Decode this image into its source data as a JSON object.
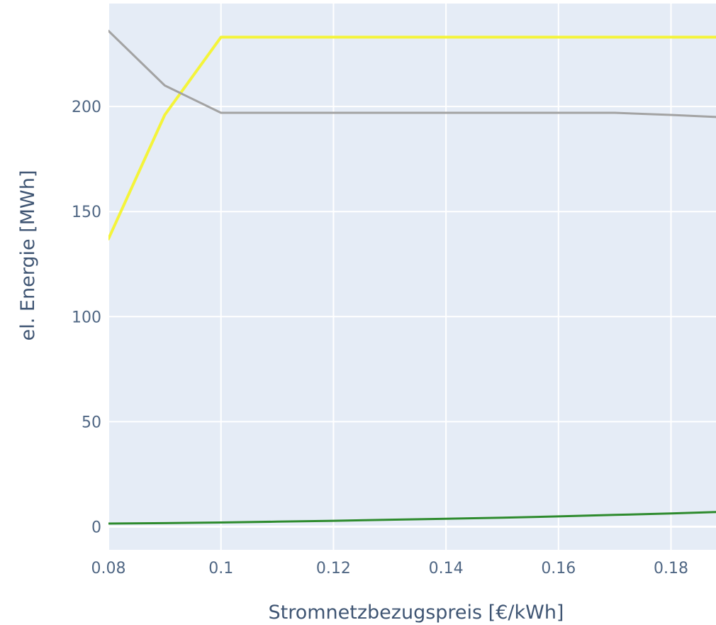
{
  "chart_data": {
    "type": "line",
    "title": "",
    "xlabel": "Stromnetzbezugspreis [€/kWh]",
    "ylabel": "el. Energie [MWh]",
    "xlim": [
      0.08,
      0.188
    ],
    "ylim": [
      -11,
      249
    ],
    "x_ticks": [
      {
        "value": 0.08,
        "label": "0.08"
      },
      {
        "value": 0.1,
        "label": "0.1"
      },
      {
        "value": 0.12,
        "label": "0.12"
      },
      {
        "value": 0.14,
        "label": "0.14"
      },
      {
        "value": 0.16,
        "label": "0.16"
      },
      {
        "value": 0.18,
        "label": "0.18"
      }
    ],
    "y_ticks": [
      {
        "value": 0,
        "label": "0"
      },
      {
        "value": 50,
        "label": "50"
      },
      {
        "value": 100,
        "label": "100"
      },
      {
        "value": 150,
        "label": "150"
      },
      {
        "value": 200,
        "label": "200"
      }
    ],
    "grid": true,
    "colors": {
      "plot_background": "#e5ecf6",
      "grid": "#ffffff",
      "tick_text": "#506784",
      "axis_title": "#3f5573"
    },
    "series": [
      {
        "color": "#f4f43a",
        "x": [
          0.08,
          0.09,
          0.1,
          0.11,
          0.12,
          0.13,
          0.14,
          0.15,
          0.16,
          0.17,
          0.18,
          0.188
        ],
        "y": [
          137,
          196,
          233,
          233,
          233,
          233,
          233,
          233,
          233,
          233,
          233,
          233
        ]
      },
      {
        "color": "#a3a3a3",
        "x": [
          0.08,
          0.09,
          0.1,
          0.11,
          0.12,
          0.13,
          0.14,
          0.15,
          0.16,
          0.17,
          0.18,
          0.188
        ],
        "y": [
          236,
          210,
          197,
          197,
          197,
          197,
          197,
          197,
          197,
          197,
          196,
          195
        ]
      },
      {
        "color": "#2e8b2e",
        "x": [
          0.08,
          0.09,
          0.1,
          0.11,
          0.12,
          0.13,
          0.14,
          0.15,
          0.16,
          0.17,
          0.18,
          0.188
        ],
        "y": [
          1.5,
          1.7,
          2.0,
          2.4,
          2.8,
          3.3,
          3.8,
          4.3,
          4.9,
          5.6,
          6.3,
          7.0
        ]
      }
    ]
  }
}
